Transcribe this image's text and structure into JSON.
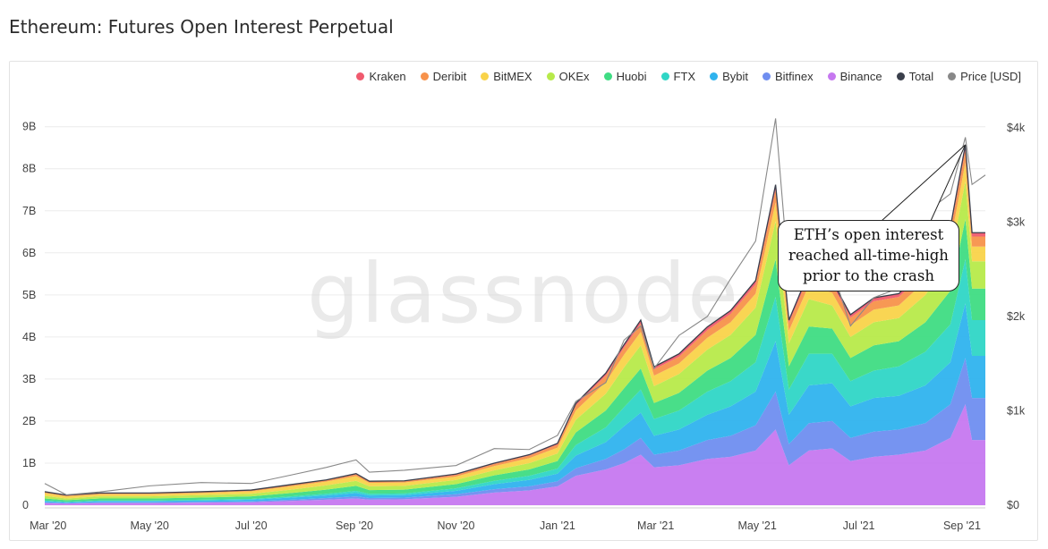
{
  "page": {
    "title": "Ethereum: Futures Open Interest Perpetual"
  },
  "watermark": "glassnode",
  "annotation": "ETH’s open interest reached all-time-high prior to the crash",
  "legend": [
    {
      "label": "Kraken",
      "color": "#f05a6e"
    },
    {
      "label": "Deribit",
      "color": "#f7924b"
    },
    {
      "label": "BitMEX",
      "color": "#f9d34a"
    },
    {
      "label": "OKEx",
      "color": "#b7ea4a"
    },
    {
      "label": "Huobi",
      "color": "#3fdc83"
    },
    {
      "label": "FTX",
      "color": "#2fd6c6"
    },
    {
      "label": "Bybit",
      "color": "#2fb3ee"
    },
    {
      "label": "Bitfinex",
      "color": "#6f8ef0"
    },
    {
      "label": "Binance",
      "color": "#c678f0"
    },
    {
      "label": "Total",
      "color": "#3a3f4b"
    },
    {
      "label": "Price [USD]",
      "color": "#888888"
    }
  ],
  "chart_data": {
    "type": "area",
    "stacked": true,
    "title": "Ethereum: Futures Open Interest Perpetual",
    "x_ticks": [
      "Mar '20",
      "May '20",
      "Jul '20",
      "Sep '20",
      "Nov '20",
      "Jan '21",
      "Mar '21",
      "May '21",
      "Jul '21",
      "Sep '21"
    ],
    "y_left_ticks": [
      "0",
      "1B",
      "2B",
      "3B",
      "4B",
      "5B",
      "6B",
      "7B",
      "8B",
      "9B"
    ],
    "y_left_range": [
      0,
      9000000000
    ],
    "y_right_ticks": [
      "$0",
      "$1k",
      "$2k",
      "$3k",
      "$4k"
    ],
    "y_right_range": [
      0,
      4000
    ],
    "grid": "horizontal",
    "legend_position": "top-right",
    "dates": [
      "2020-02-28",
      "2020-03-12",
      "2020-04-01",
      "2020-05-01",
      "2020-06-01",
      "2020-07-01",
      "2020-07-25",
      "2020-08-15",
      "2020-09-02",
      "2020-09-10",
      "2020-10-01",
      "2020-11-01",
      "2020-11-24",
      "2020-12-15",
      "2021-01-01",
      "2021-01-12",
      "2021-01-30",
      "2021-02-10",
      "2021-02-20",
      "2021-02-28",
      "2021-03-15",
      "2021-04-01",
      "2021-04-15",
      "2021-04-30",
      "2021-05-12",
      "2021-05-20",
      "2021-06-01",
      "2021-06-15",
      "2021-06-26",
      "2021-07-10",
      "2021-07-25",
      "2021-08-10",
      "2021-08-25",
      "2021-09-03",
      "2021-09-07",
      "2021-09-15"
    ],
    "series": [
      {
        "name": "Binance",
        "values": [
          0.05,
          0.04,
          0.05,
          0.05,
          0.06,
          0.07,
          0.1,
          0.13,
          0.16,
          0.13,
          0.14,
          0.2,
          0.3,
          0.35,
          0.45,
          0.7,
          0.85,
          1.0,
          1.2,
          0.9,
          0.95,
          1.1,
          1.15,
          1.3,
          1.8,
          0.95,
          1.3,
          1.35,
          1.05,
          1.15,
          1.2,
          1.3,
          1.6,
          2.4,
          1.55,
          1.55
        ]
      },
      {
        "name": "Bitfinex",
        "values": [
          0.02,
          0.01,
          0.02,
          0.02,
          0.02,
          0.02,
          0.03,
          0.04,
          0.05,
          0.04,
          0.04,
          0.06,
          0.08,
          0.1,
          0.12,
          0.18,
          0.25,
          0.33,
          0.4,
          0.3,
          0.35,
          0.45,
          0.5,
          0.6,
          0.9,
          0.5,
          0.65,
          0.65,
          0.55,
          0.6,
          0.6,
          0.65,
          0.8,
          1.1,
          1.0,
          1.0
        ]
      },
      {
        "name": "Bybit",
        "values": [
          0.03,
          0.02,
          0.03,
          0.03,
          0.03,
          0.04,
          0.05,
          0.06,
          0.08,
          0.06,
          0.06,
          0.08,
          0.12,
          0.15,
          0.18,
          0.3,
          0.4,
          0.55,
          0.6,
          0.45,
          0.5,
          0.6,
          0.7,
          0.8,
          1.2,
          0.7,
          0.9,
          0.9,
          0.75,
          0.8,
          0.8,
          0.9,
          1.0,
          1.3,
          1.0,
          1.0
        ]
      },
      {
        "name": "FTX",
        "values": [
          0.01,
          0.01,
          0.01,
          0.01,
          0.02,
          0.02,
          0.03,
          0.04,
          0.05,
          0.04,
          0.04,
          0.06,
          0.08,
          0.1,
          0.12,
          0.25,
          0.35,
          0.45,
          0.55,
          0.4,
          0.45,
          0.55,
          0.6,
          0.7,
          1.05,
          0.6,
          0.75,
          0.7,
          0.6,
          0.65,
          0.7,
          0.8,
          0.9,
          1.05,
          0.85,
          0.85
        ]
      },
      {
        "name": "Huobi",
        "values": [
          0.05,
          0.04,
          0.05,
          0.05,
          0.05,
          0.06,
          0.08,
          0.1,
          0.12,
          0.09,
          0.09,
          0.1,
          0.13,
          0.15,
          0.18,
          0.3,
          0.4,
          0.45,
          0.5,
          0.38,
          0.42,
          0.5,
          0.55,
          0.65,
          0.9,
          0.55,
          0.65,
          0.6,
          0.55,
          0.6,
          0.6,
          0.7,
          0.8,
          0.95,
          0.75,
          0.75
        ]
      },
      {
        "name": "OKEx",
        "values": [
          0.06,
          0.04,
          0.05,
          0.05,
          0.06,
          0.06,
          0.08,
          0.1,
          0.12,
          0.09,
          0.09,
          0.1,
          0.12,
          0.15,
          0.18,
          0.3,
          0.4,
          0.5,
          0.55,
          0.4,
          0.45,
          0.5,
          0.55,
          0.65,
          0.9,
          0.55,
          0.65,
          0.55,
          0.5,
          0.55,
          0.55,
          0.65,
          0.75,
          0.9,
          0.65,
          0.65
        ]
      },
      {
        "name": "BitMEX",
        "values": [
          0.07,
          0.05,
          0.05,
          0.05,
          0.05,
          0.06,
          0.08,
          0.09,
          0.11,
          0.08,
          0.08,
          0.08,
          0.1,
          0.12,
          0.14,
          0.22,
          0.28,
          0.3,
          0.32,
          0.25,
          0.25,
          0.28,
          0.3,
          0.33,
          0.45,
          0.3,
          0.33,
          0.3,
          0.28,
          0.3,
          0.3,
          0.33,
          0.4,
          0.45,
          0.35,
          0.35
        ]
      },
      {
        "name": "Deribit",
        "values": [
          0.02,
          0.02,
          0.02,
          0.02,
          0.02,
          0.02,
          0.03,
          0.03,
          0.04,
          0.03,
          0.03,
          0.04,
          0.05,
          0.06,
          0.07,
          0.12,
          0.15,
          0.17,
          0.2,
          0.15,
          0.16,
          0.18,
          0.2,
          0.22,
          0.3,
          0.18,
          0.22,
          0.2,
          0.18,
          0.2,
          0.2,
          0.22,
          0.26,
          0.3,
          0.24,
          0.24
        ]
      },
      {
        "name": "Kraken",
        "values": [
          0.01,
          0.01,
          0.01,
          0.01,
          0.01,
          0.01,
          0.01,
          0.01,
          0.02,
          0.01,
          0.01,
          0.02,
          0.02,
          0.02,
          0.03,
          0.05,
          0.06,
          0.07,
          0.08,
          0.06,
          0.07,
          0.08,
          0.08,
          0.09,
          0.12,
          0.07,
          0.09,
          0.08,
          0.07,
          0.08,
          0.08,
          0.09,
          0.1,
          0.12,
          0.09,
          0.09
        ]
      }
    ],
    "price_usd": [
      230,
      110,
      140,
      205,
      240,
      230,
      320,
      400,
      480,
      350,
      370,
      420,
      600,
      590,
      740,
      1100,
      1300,
      1750,
      1900,
      1450,
      1800,
      2000,
      2400,
      2800,
      4100,
      2400,
      2650,
      2500,
      1900,
      2200,
      2300,
      3100,
      3300,
      3900,
      3400,
      3500
    ]
  }
}
